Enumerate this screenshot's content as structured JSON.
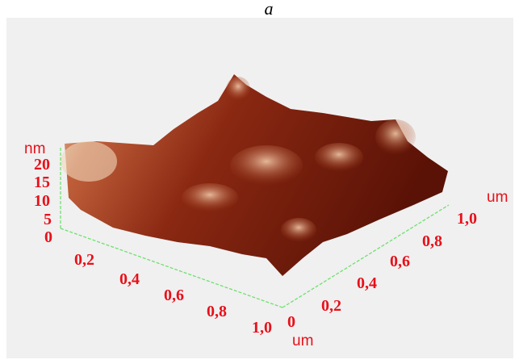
{
  "title": "a",
  "z_axis": {
    "unit": "nm",
    "ticks": [
      "20",
      "15",
      "10",
      "5",
      "0"
    ]
  },
  "x_axis": {
    "ticks": [
      "0,2",
      "0,4",
      "0,6",
      "0,8",
      "1,0"
    ],
    "unit": "um"
  },
  "origin_label": "0",
  "y_axis": {
    "ticks": [
      "0,2",
      "0,4",
      "0,6",
      "0,8",
      "1,0"
    ],
    "unit": "um"
  }
}
